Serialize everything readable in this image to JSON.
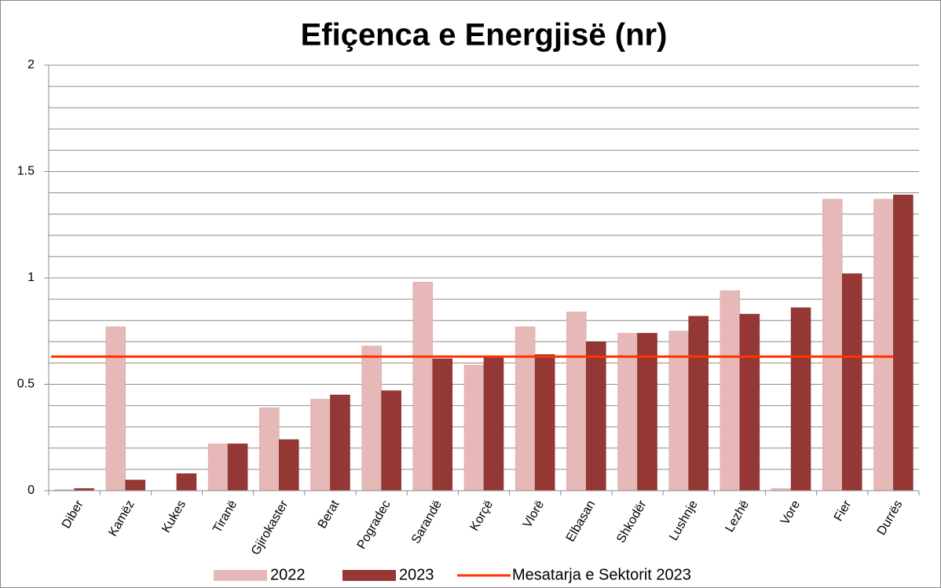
{
  "chart_data": {
    "type": "bar",
    "title": "Efiçenca e Energjisë (nr)",
    "categories": [
      "Diber",
      "Kamëz",
      "Kukes",
      "Tiranë",
      "Gjirokaster",
      "Berat",
      "Pogradec",
      "Sarandë",
      "Korçë",
      "Vlorë",
      "Elbasan",
      "Shkodër",
      "Lushnje",
      "Lezhë",
      "Vore",
      "Fier",
      "Durrës"
    ],
    "series": [
      {
        "name": "2022",
        "color": "#e6b8b7",
        "values": [
          0.005,
          0.77,
          0,
          0.22,
          0.39,
          0.43,
          0.68,
          0.98,
          0.59,
          0.77,
          0.84,
          0.74,
          0.75,
          0.94,
          0.01,
          1.37,
          1.37
        ]
      },
      {
        "name": "2023",
        "color": "#953735",
        "values": [
          0.01,
          0.05,
          0.08,
          0.22,
          0.24,
          0.45,
          0.47,
          0.62,
          0.63,
          0.64,
          0.7,
          0.74,
          0.82,
          0.83,
          0.86,
          1.02,
          1.39
        ]
      }
    ],
    "average_line": {
      "name": "Mesatarja e Sektorit 2023",
      "color": "#ff3300",
      "value": 0.63
    },
    "ylim": [
      0,
      2
    ],
    "yticks": [
      0,
      0.5,
      1,
      1.5,
      2
    ],
    "minor_yticks": [
      0.1,
      0.2,
      0.3,
      0.4,
      0.6,
      0.7,
      0.8,
      0.9,
      1.1,
      1.2,
      1.3,
      1.4,
      1.6,
      1.7,
      1.8,
      1.9
    ],
    "grid": true,
    "legend": "bottom"
  }
}
